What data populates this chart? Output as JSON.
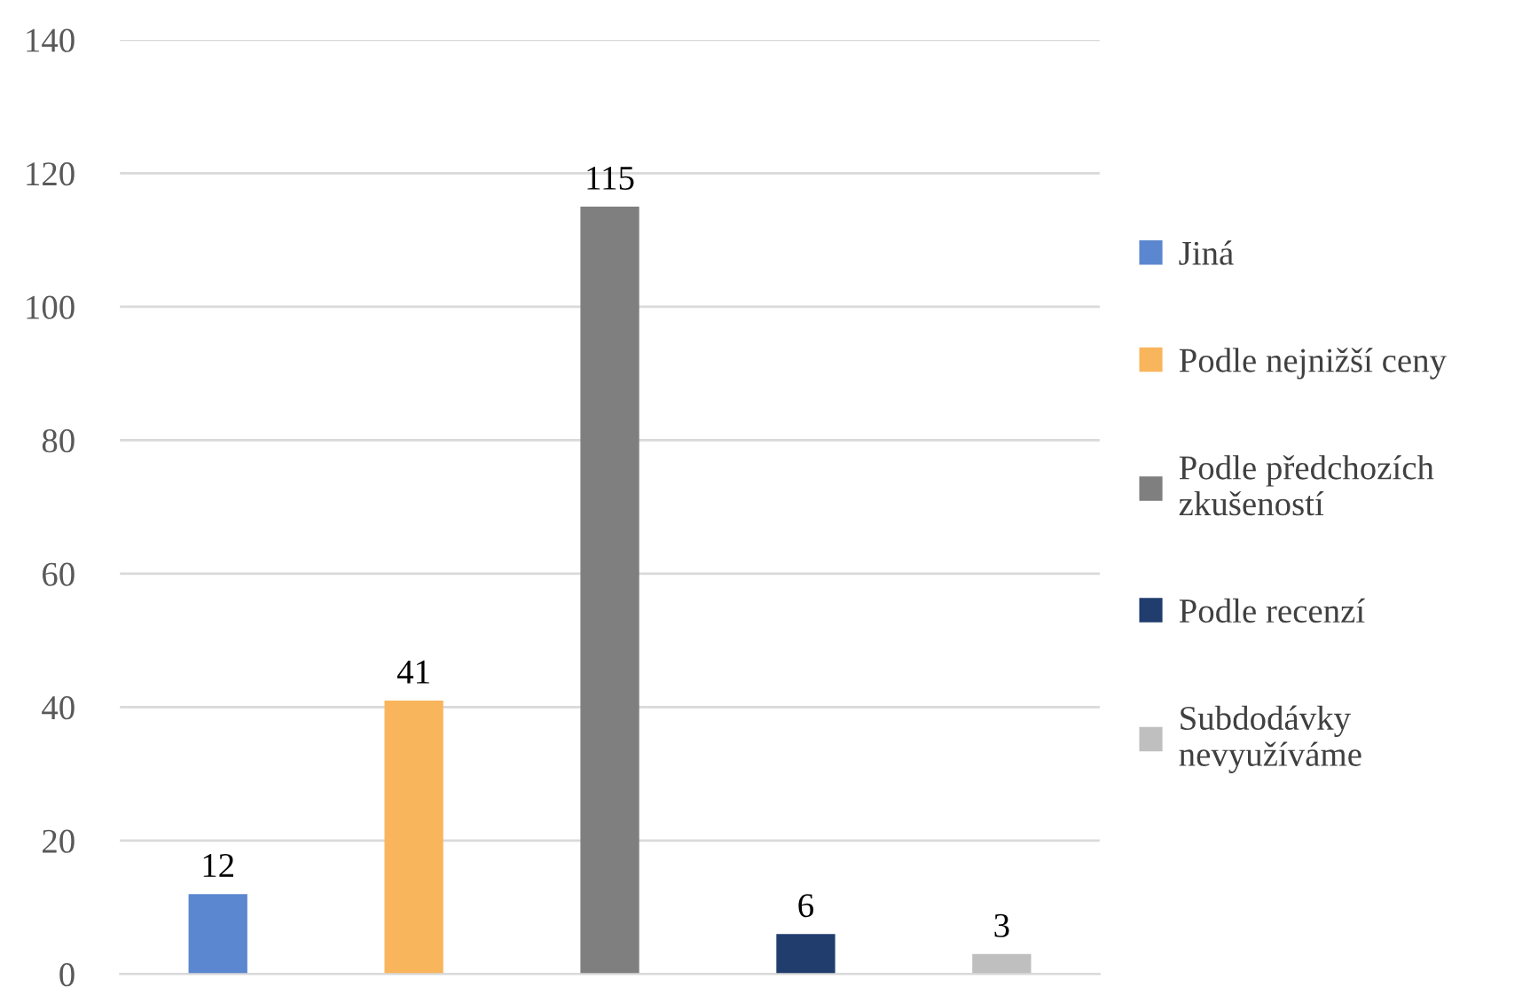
{
  "chart_data": {
    "type": "bar",
    "categories": [
      null,
      null,
      null,
      null,
      null
    ],
    "series": [
      {
        "name": "Jiná",
        "color": "#5b87d0",
        "values": [
          12,
          null,
          null,
          null,
          null
        ]
      },
      {
        "name": "Podle nejnižší ceny",
        "color": "#f9b55c",
        "values": [
          null,
          41,
          null,
          null,
          null
        ]
      },
      {
        "name": "Podle předchozích zkušeností",
        "color": "#7f7f7f",
        "values": [
          null,
          null,
          115,
          null,
          null
        ]
      },
      {
        "name": "Podle recenzí",
        "color": "#203d6e",
        "values": [
          null,
          null,
          null,
          6,
          null
        ]
      },
      {
        "name": "Subdodávky nevyužíváme",
        "color": "#bfbfbf",
        "values": [
          null,
          null,
          null,
          null,
          3
        ]
      }
    ],
    "ylim": [
      0,
      140
    ],
    "yticks": [
      0,
      20,
      40,
      60,
      80,
      100,
      120,
      140
    ],
    "grid": "y",
    "legend": "right",
    "data_labels": true
  }
}
